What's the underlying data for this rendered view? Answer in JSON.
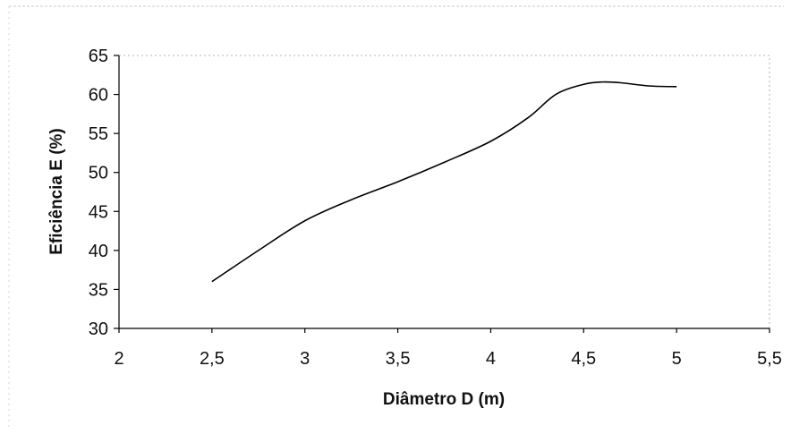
{
  "chart_data": {
    "type": "line",
    "title": "",
    "xlabel": "Diâmetro D (m)",
    "ylabel": "Eficiência E (%)",
    "xlim": [
      2,
      5.5
    ],
    "ylim": [
      30,
      65
    ],
    "x_ticks": [
      "2",
      "2,5",
      "3",
      "3,5",
      "4",
      "4,5",
      "5",
      "5,5"
    ],
    "y_ticks": [
      "30",
      "35",
      "40",
      "45",
      "50",
      "55",
      "60",
      "65"
    ],
    "x_tick_values": [
      2,
      2.5,
      3,
      3.5,
      4,
      4.5,
      5,
      5.5
    ],
    "y_tick_values": [
      30,
      35,
      40,
      45,
      50,
      55,
      60,
      65
    ],
    "grid": false,
    "legend": "none",
    "series": [
      {
        "x": [
          2.5,
          2.75,
          3.0,
          3.25,
          3.5,
          3.75,
          4.0,
          4.2,
          4.35,
          4.5,
          4.6,
          4.7,
          4.85,
          5.0
        ],
        "values": [
          36,
          40,
          43.8,
          46.5,
          48.8,
          51.3,
          54,
          57,
          60,
          61.3,
          61.6,
          61.5,
          61.1,
          61.0
        ],
        "color": "#000000"
      }
    ]
  }
}
